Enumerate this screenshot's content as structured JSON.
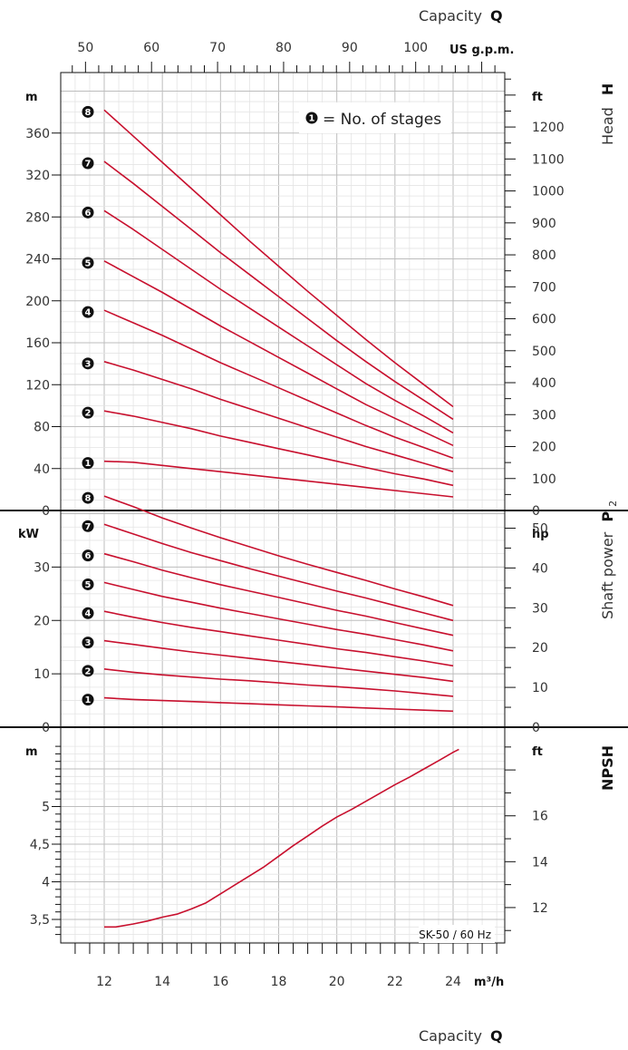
{
  "model": "SK-50 / 60 Hz",
  "legend": {
    "marker": "1",
    "text": "= No. of stages"
  },
  "axes": {
    "top_title": "Capacity",
    "top_title_symbol": "Q",
    "top_unit": "US g.p.m.",
    "top_ticks": [
      "50",
      "60",
      "70",
      "80",
      "90",
      "100"
    ],
    "bottom_title": "Capacity",
    "bottom_title_symbol": "Q",
    "bottom_unit": "m³/h",
    "bottom_ticks": [
      "12",
      "14",
      "16",
      "18",
      "20",
      "22",
      "24"
    ],
    "head_title": "Head",
    "head_symbol": "H",
    "head_left_unit": "m",
    "head_left_ticks": [
      "0",
      "40",
      "80",
      "120",
      "160",
      "200",
      "240",
      "280",
      "320",
      "360"
    ],
    "head_right_unit": "ft",
    "head_right_ticks": [
      "0",
      "100",
      "200",
      "300",
      "400",
      "500",
      "600",
      "700",
      "800",
      "900",
      "1000",
      "1100",
      "1200"
    ],
    "power_title": "Shaft power",
    "power_symbol": "P",
    "power_subscript": "2",
    "power_left_unit": "kW",
    "power_left_ticks": [
      "0",
      "10",
      "20",
      "30"
    ],
    "power_right_unit": "hp",
    "power_right_ticks": [
      "0",
      "10",
      "20",
      "30",
      "40",
      "50"
    ],
    "npsh_title": "NPSH",
    "npsh_left_unit": "m",
    "npsh_left_ticks": [
      "3,5",
      "4",
      "4,5",
      "5"
    ],
    "npsh_right_unit": "ft",
    "npsh_right_ticks": [
      "12",
      "14",
      "16"
    ]
  },
  "colors": {
    "curve": "#c8102e",
    "grid_major": "#bdbdbd",
    "grid_minor": "#e4e4e4",
    "frame": "#111111",
    "text": "#333333"
  },
  "chart_data": [
    {
      "type": "line",
      "panel": "head",
      "x_unit": "m³/h",
      "y_unit": "m",
      "xlim": [
        10.5,
        25.5
      ],
      "ylim": [
        0,
        400
      ],
      "grid": true,
      "series": [
        {
          "name": "1",
          "x": [
            12.0,
            13.0,
            14.0,
            15.0,
            16.0,
            17.0,
            18.0,
            19.0,
            20.0,
            21.0,
            22.0,
            23.0,
            24.0
          ],
          "y": [
            47,
            46,
            43,
            40,
            37,
            34,
            31,
            28,
            25,
            22,
            19,
            16,
            13
          ]
        },
        {
          "name": "2",
          "x": [
            12.0,
            13.0,
            14.0,
            15.0,
            16.0,
            17.0,
            18.0,
            19.0,
            20.0,
            21.0,
            22.0,
            23.0,
            24.0
          ],
          "y": [
            95,
            90,
            84,
            78,
            71,
            65,
            59,
            53,
            47,
            41,
            35,
            30,
            24
          ]
        },
        {
          "name": "3",
          "x": [
            12.0,
            13.0,
            14.0,
            15.0,
            16.0,
            17.0,
            18.0,
            19.0,
            20.0,
            21.0,
            22.0,
            23.0,
            24.0
          ],
          "y": [
            142,
            134,
            125,
            116,
            106,
            97,
            88,
            79,
            70,
            61,
            53,
            45,
            37
          ]
        },
        {
          "name": "4",
          "x": [
            12.0,
            13.0,
            14.0,
            15.0,
            16.0,
            17.0,
            18.0,
            19.0,
            20.0,
            21.0,
            22.0,
            23.0,
            24.0
          ],
          "y": [
            191,
            179,
            167,
            154,
            141,
            129,
            117,
            105,
            93,
            81,
            70,
            60,
            50
          ]
        },
        {
          "name": "5",
          "x": [
            12.0,
            13.0,
            14.0,
            15.0,
            16.0,
            17.0,
            18.0,
            19.0,
            20.0,
            21.0,
            22.0,
            23.0,
            24.0
          ],
          "y": [
            238,
            223,
            208,
            192,
            176,
            161,
            146,
            131,
            116,
            101,
            88,
            75,
            62
          ]
        },
        {
          "name": "6",
          "x": [
            12.0,
            13.0,
            14.0,
            15.0,
            16.0,
            17.0,
            18.0,
            19.0,
            20.0,
            21.0,
            22.0,
            23.0,
            24.0
          ],
          "y": [
            286,
            268,
            249,
            230,
            211,
            193,
            175,
            157,
            139,
            121,
            105,
            90,
            74
          ]
        },
        {
          "name": "7",
          "x": [
            12.0,
            13.0,
            14.0,
            15.0,
            16.0,
            17.0,
            18.0,
            19.0,
            20.0,
            21.0,
            22.0,
            23.0,
            24.0
          ],
          "y": [
            333,
            312,
            290,
            268,
            246,
            225,
            204,
            183,
            162,
            142,
            123,
            105,
            87
          ]
        },
        {
          "name": "8",
          "x": [
            12.0,
            13.0,
            14.0,
            15.0,
            16.0,
            17.0,
            18.0,
            19.0,
            20.0,
            21.0,
            22.0,
            23.0,
            24.0
          ],
          "y": [
            382,
            357,
            332,
            307,
            282,
            257,
            233,
            209,
            186,
            163,
            141,
            120,
            99
          ]
        }
      ]
    },
    {
      "type": "line",
      "panel": "shaft_power",
      "x_unit": "m³/h",
      "y_unit": "kW",
      "xlim": [
        10.5,
        25.5
      ],
      "ylim": [
        0,
        42
      ],
      "grid": true,
      "series": [
        {
          "name": "1",
          "x": [
            12.0,
            13.0,
            14.0,
            15.0,
            16.0,
            17.0,
            18.0,
            19.0,
            20.0,
            21.0,
            22.0,
            23.0,
            24.0
          ],
          "y": [
            5.5,
            5.2,
            5.0,
            4.8,
            4.6,
            4.4,
            4.2,
            4.0,
            3.8,
            3.6,
            3.4,
            3.2,
            3.0
          ]
        },
        {
          "name": "2",
          "x": [
            12.0,
            13.0,
            14.0,
            15.0,
            16.0,
            17.0,
            18.0,
            19.0,
            20.0,
            21.0,
            22.0,
            23.0,
            24.0
          ],
          "y": [
            10.9,
            10.3,
            9.8,
            9.4,
            9.0,
            8.7,
            8.3,
            7.9,
            7.6,
            7.2,
            6.8,
            6.3,
            5.8
          ]
        },
        {
          "name": "3",
          "x": [
            12.0,
            13.0,
            14.0,
            15.0,
            16.0,
            17.0,
            18.0,
            19.0,
            20.0,
            21.0,
            22.0,
            23.0,
            24.0
          ],
          "y": [
            16.2,
            15.5,
            14.8,
            14.1,
            13.5,
            12.9,
            12.3,
            11.7,
            11.1,
            10.5,
            9.9,
            9.3,
            8.6
          ]
        },
        {
          "name": "4",
          "x": [
            12.0,
            13.0,
            14.0,
            15.0,
            16.0,
            17.0,
            18.0,
            19.0,
            20.0,
            21.0,
            22.0,
            23.0,
            24.0
          ],
          "y": [
            21.7,
            20.6,
            19.6,
            18.7,
            17.9,
            17.1,
            16.3,
            15.5,
            14.7,
            14.0,
            13.2,
            12.4,
            11.5
          ]
        },
        {
          "name": "5",
          "x": [
            12.0,
            13.0,
            14.0,
            15.0,
            16.0,
            17.0,
            18.0,
            19.0,
            20.0,
            21.0,
            22.0,
            23.0,
            24.0
          ],
          "y": [
            27.1,
            25.8,
            24.5,
            23.4,
            22.3,
            21.3,
            20.3,
            19.3,
            18.3,
            17.4,
            16.4,
            15.4,
            14.3
          ]
        },
        {
          "name": "6",
          "x": [
            12.0,
            13.0,
            14.0,
            15.0,
            16.0,
            17.0,
            18.0,
            19.0,
            20.0,
            21.0,
            22.0,
            23.0,
            24.0
          ],
          "y": [
            32.5,
            31.0,
            29.4,
            28.0,
            26.7,
            25.5,
            24.3,
            23.1,
            21.9,
            20.8,
            19.6,
            18.4,
            17.2
          ]
        },
        {
          "name": "7",
          "x": [
            12.0,
            13.0,
            14.0,
            15.0,
            16.0,
            17.0,
            18.0,
            19.0,
            20.0,
            21.0,
            22.0,
            23.0,
            24.0
          ],
          "y": [
            38.0,
            36.2,
            34.4,
            32.7,
            31.2,
            29.7,
            28.3,
            26.9,
            25.5,
            24.2,
            22.8,
            21.4,
            20.0
          ]
        },
        {
          "name": "8",
          "x": [
            12.0,
            13.0,
            14.0,
            15.0,
            16.0,
            17.0,
            18.0,
            19.0,
            20.0,
            21.0,
            22.0,
            23.0,
            24.0
          ],
          "y": [
            43.3,
            41.3,
            39.2,
            37.3,
            35.5,
            33.8,
            32.1,
            30.5,
            29.0,
            27.5,
            25.9,
            24.4,
            22.8
          ]
        }
      ]
    },
    {
      "type": "line",
      "panel": "npsh",
      "x_unit": "m³/h",
      "y_unit": "m",
      "xlim": [
        10.5,
        25.5
      ],
      "ylim": [
        3.2,
        5.8
      ],
      "grid": true,
      "series": [
        {
          "x": [
            12.0,
            12.4,
            13.0,
            13.5,
            14.0,
            14.5,
            15.0,
            15.5,
            16.0,
            16.5,
            17.0,
            17.5,
            18.0,
            18.5,
            19.0,
            19.5,
            20.0,
            20.5,
            21.0,
            21.5,
            22.0,
            22.5,
            23.0,
            23.5,
            24.0,
            24.2
          ],
          "y": [
            3.4,
            3.4,
            3.44,
            3.48,
            3.53,
            3.57,
            3.64,
            3.72,
            3.84,
            3.96,
            4.08,
            4.2,
            4.34,
            4.48,
            4.61,
            4.74,
            4.86,
            4.96,
            5.07,
            5.18,
            5.29,
            5.39,
            5.5,
            5.61,
            5.72,
            5.76
          ]
        }
      ]
    }
  ]
}
